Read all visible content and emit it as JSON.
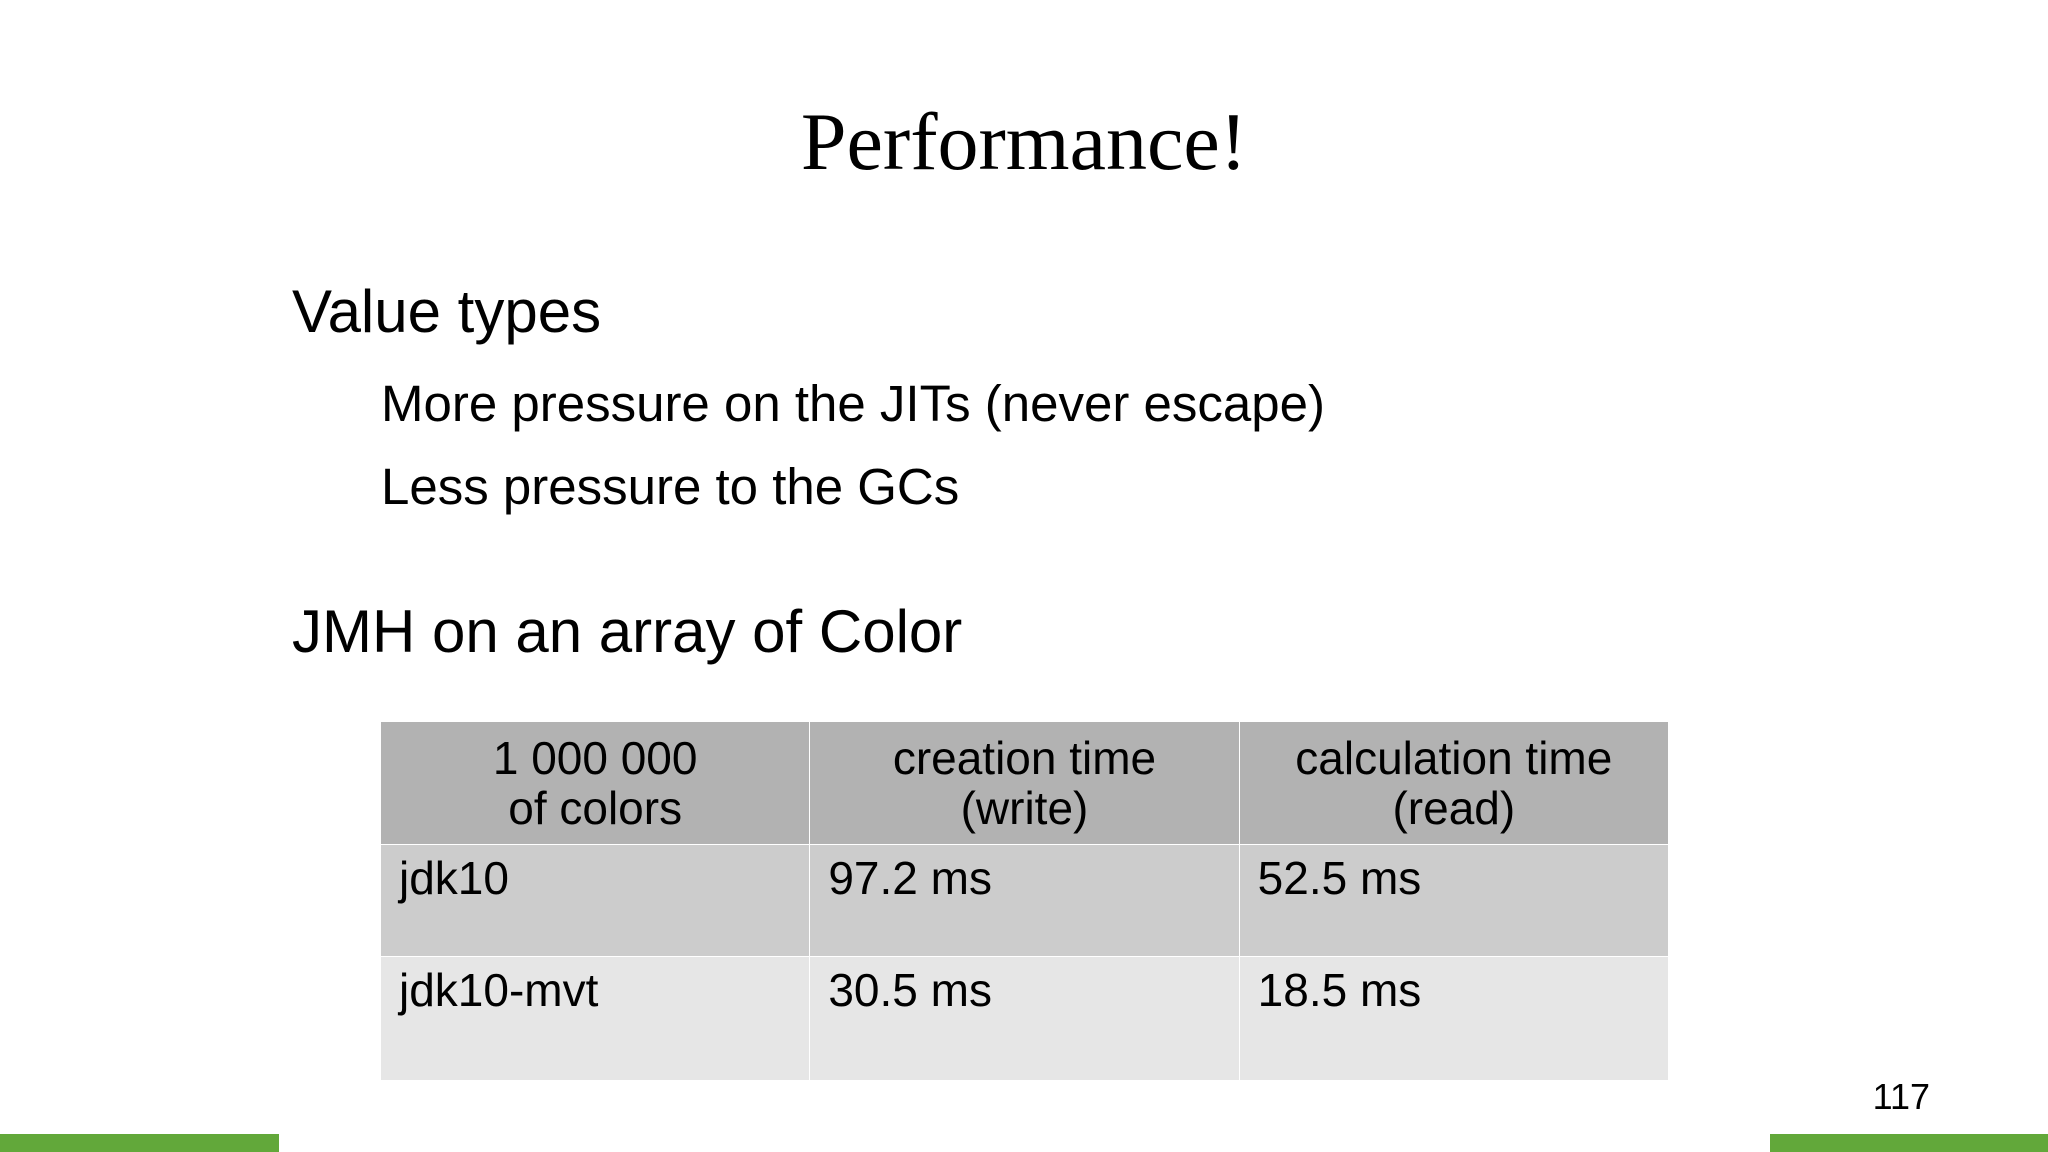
{
  "slide": {
    "title": "Performance!",
    "section1": {
      "heading": "Value types",
      "bullets": [
        "More pressure on the JITs (never escape)",
        "Less pressure to the GCs"
      ]
    },
    "section2": {
      "heading": "JMH on an array of Color"
    },
    "table": {
      "headers": [
        [
          "1 000 000",
          "of colors"
        ],
        [
          "creation time",
          "(write)"
        ],
        [
          "calculation time",
          "(read)"
        ]
      ],
      "rows": [
        [
          "jdk10",
          "97.2 ms",
          "52.5 ms"
        ],
        [
          "jdk10-mvt",
          "30.5 ms",
          "18.5 ms"
        ]
      ]
    },
    "page_number": "117"
  },
  "colors": {
    "accent": "#62a83a",
    "header_fill": "#b2b2b2",
    "row_dark": "#cccccc",
    "row_light": "#e6e6e6"
  }
}
